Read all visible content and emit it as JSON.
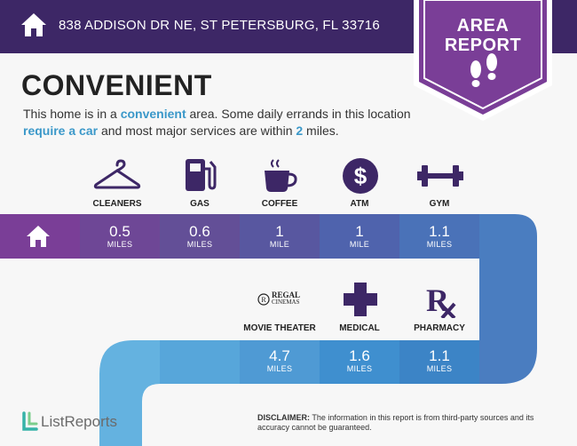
{
  "header": {
    "address": "838 ADDISON DR NE, ST PETERSBURG, FL 33716"
  },
  "badge": {
    "line1": "AREA",
    "line2": "REPORT"
  },
  "headline": "CONVENIENT",
  "description": {
    "p1": "This home is in a ",
    "hl1": "convenient",
    "p2": " area. Some daily errands in this location ",
    "hl2": "require a car",
    "p3": " and most major services are within ",
    "hl3": "2",
    "p4": " miles."
  },
  "services_row1": [
    {
      "label": "CLEANERS",
      "value": "0.5",
      "unit": "MILES",
      "icon": "hanger-icon"
    },
    {
      "label": "GAS",
      "value": "0.6",
      "unit": "MILES",
      "icon": "gas-pump-icon"
    },
    {
      "label": "COFFEE",
      "value": "1",
      "unit": "MILE",
      "icon": "coffee-cup-icon"
    },
    {
      "label": "ATM",
      "value": "1",
      "unit": "MILE",
      "icon": "dollar-icon"
    },
    {
      "label": "GYM",
      "value": "1.1",
      "unit": "MILES",
      "icon": "dumbbell-icon"
    }
  ],
  "services_row2": [
    {
      "label": "MOVIE THEATER",
      "value": "4.7",
      "unit": "MILES",
      "icon": "regal-cinemas-logo",
      "logo_text1": "REGAL",
      "logo_text2": "CINEMAS"
    },
    {
      "label": "MEDICAL",
      "value": "1.6",
      "unit": "MILES",
      "icon": "medical-cross-icon"
    },
    {
      "label": "PHARMACY",
      "value": "1.1",
      "unit": "MILES",
      "icon": "rx-icon"
    }
  ],
  "footer": {
    "logo_text": "ListReports",
    "disclaimer_bold": "DISCLAIMER:",
    "disclaimer_text": " The information in this report is from third-party sources and its accuracy cannot be guaranteed."
  },
  "colors": {
    "header_bg": "#3d2766",
    "badge_bg": "#7a3e97",
    "accent_text": "#3b98c9",
    "row1": [
      "#7a3e97",
      "#6e4796",
      "#634f97",
      "#5857a0",
      "#4f63ad",
      "#4a72b8"
    ],
    "row2": [
      "#64b2e0",
      "#57a6da",
      "#4f9ad4",
      "#3f8fcf",
      "#3c84c6"
    ]
  }
}
